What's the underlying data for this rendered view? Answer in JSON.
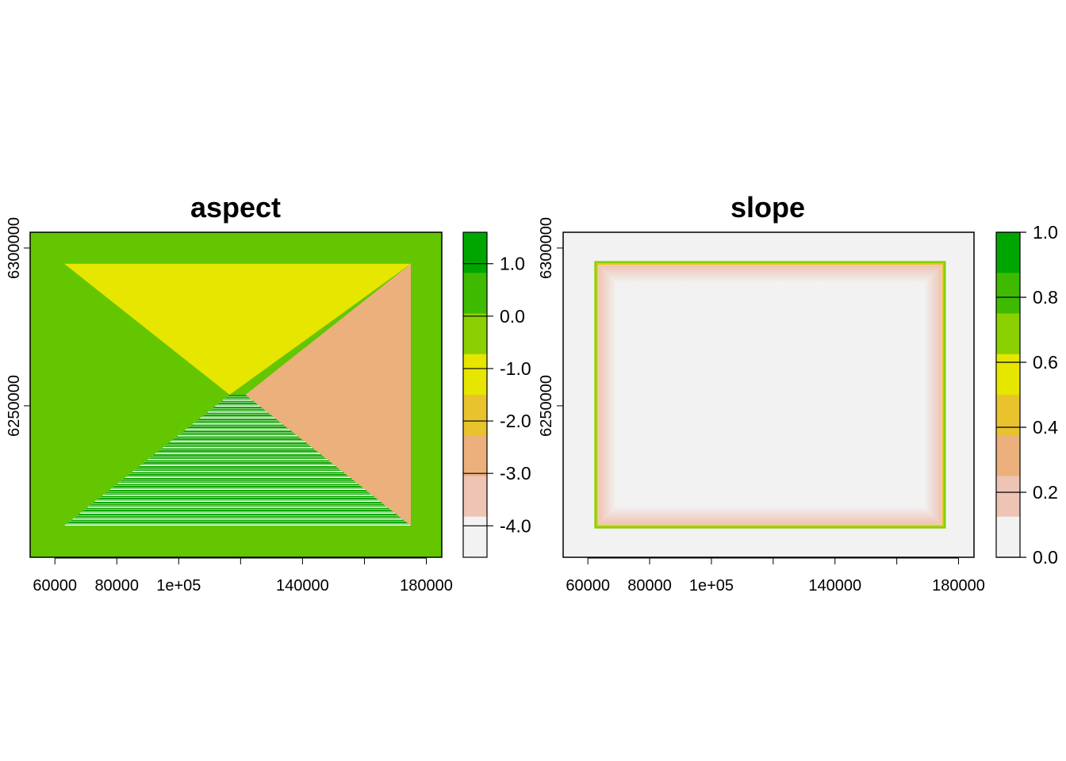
{
  "chart_data": [
    {
      "type": "heatmap",
      "title": "aspect",
      "xlim": [
        52000,
        185000
      ],
      "ylim": [
        6202000,
        6305000
      ],
      "x_ticks": [
        60000,
        80000,
        100000,
        120000,
        140000,
        160000,
        180000
      ],
      "x_tick_labels": [
        "60000",
        "80000",
        "1e+05",
        "",
        "140000",
        "",
        "180000"
      ],
      "y_ticks": [
        6300000,
        6250000
      ],
      "y_tick_labels": [
        "6300000",
        "6250000"
      ],
      "grid": false,
      "legend": "right colorbar",
      "background_value": 0.0,
      "inner_rectangle": {
        "x": [
          63000,
          175000
        ],
        "y": [
          6212000,
          6295000
        ]
      },
      "regions": [
        {
          "name": "north",
          "value": -1.5,
          "color": "#e6e600"
        },
        {
          "name": "east",
          "value": -3.1,
          "color": "#ebb07c"
        },
        {
          "name": "west",
          "value": 0.0,
          "color": "#63c600"
        },
        {
          "name": "south",
          "value": 1.0,
          "color": "#10a800",
          "striped": true
        }
      ],
      "colorbar": {
        "ticks": [
          1.0,
          0.0,
          -1.0,
          -2.0,
          -3.0,
          -4.0
        ],
        "tick_labels": [
          "1.0",
          "0.0",
          "-1.0",
          "-2.0",
          "-3.0",
          "-4.0"
        ],
        "range": [
          -4.6,
          1.6
        ],
        "colors": [
          "#00a600",
          "#3ebb00",
          "#8bd000",
          "#e6e600",
          "#e8c32e",
          "#ebb07c",
          "#eec4b4",
          "#f2f2f2"
        ]
      }
    },
    {
      "type": "heatmap",
      "title": "slope",
      "xlim": [
        52000,
        185000
      ],
      "ylim": [
        6202000,
        6305000
      ],
      "x_ticks": [
        60000,
        80000,
        100000,
        120000,
        140000,
        160000,
        180000
      ],
      "x_tick_labels": [
        "60000",
        "80000",
        "1e+05",
        "",
        "140000",
        "",
        "180000"
      ],
      "y_ticks": [
        6300000,
        6250000
      ],
      "y_tick_labels": [
        "6300000",
        "6250000"
      ],
      "grid": false,
      "legend": "right colorbar",
      "background_value": 0.0,
      "inner_rectangle": {
        "x": [
          63000,
          175000
        ],
        "y": [
          6212000,
          6295000
        ]
      },
      "edge_values": {
        "rim": 1.0,
        "inner_edge": 0.25,
        "interior": 0.0
      },
      "colorbar": {
        "ticks": [
          1.0,
          0.8,
          0.6,
          0.4,
          0.2,
          0.0
        ],
        "tick_labels": [
          "1.0",
          "0.8",
          "0.6",
          "0.4",
          "0.2",
          "0.0"
        ],
        "range": [
          0.0,
          1.0
        ],
        "colors": [
          "#00a600",
          "#3ebb00",
          "#8bd000",
          "#e6e600",
          "#e8c32e",
          "#ebb07c",
          "#eec4b4",
          "#f2f2f2"
        ]
      }
    }
  ]
}
